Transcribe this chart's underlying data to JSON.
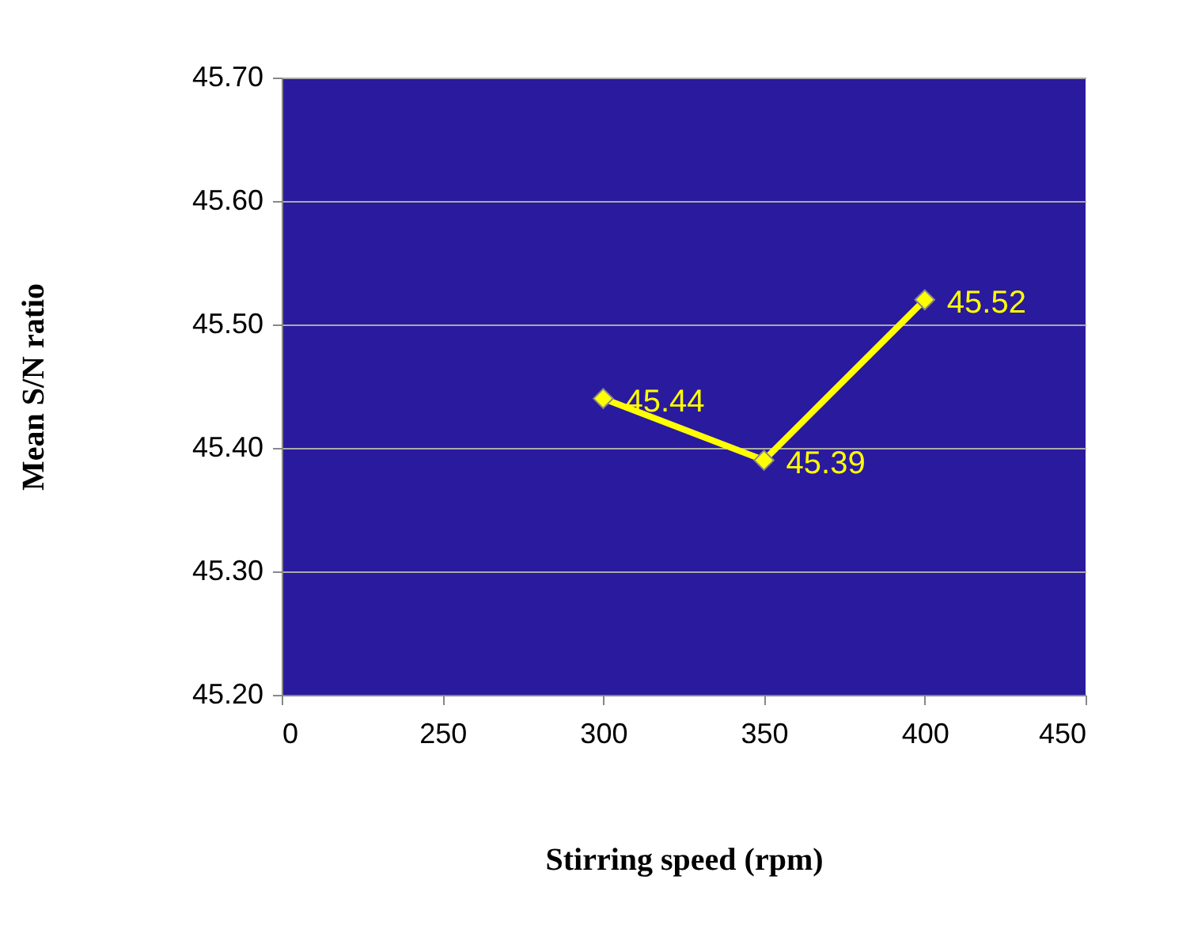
{
  "chart_data": {
    "type": "line",
    "xlabel": "Stirring speed (rpm)",
    "ylabel": "Mean S/N ratio",
    "categories": [
      "0",
      "250",
      "300",
      "350",
      "400",
      "450"
    ],
    "series": [
      {
        "color": "#ffff00",
        "values": [
          null,
          null,
          45.44,
          45.39,
          45.52,
          null
        ]
      }
    ],
    "ylim": [
      45.2,
      45.7
    ],
    "yticks": [
      {
        "value": 45.2,
        "label": "45.20"
      },
      {
        "value": 45.3,
        "label": "45.30"
      },
      {
        "value": 45.4,
        "label": "45.40"
      },
      {
        "value": 45.5,
        "label": "45.50"
      },
      {
        "value": 45.6,
        "label": "45.60"
      },
      {
        "value": 45.7,
        "label": "45.70"
      }
    ],
    "grid": "y",
    "marker": "diamond",
    "line_style": "solid",
    "data_labels": true
  }
}
